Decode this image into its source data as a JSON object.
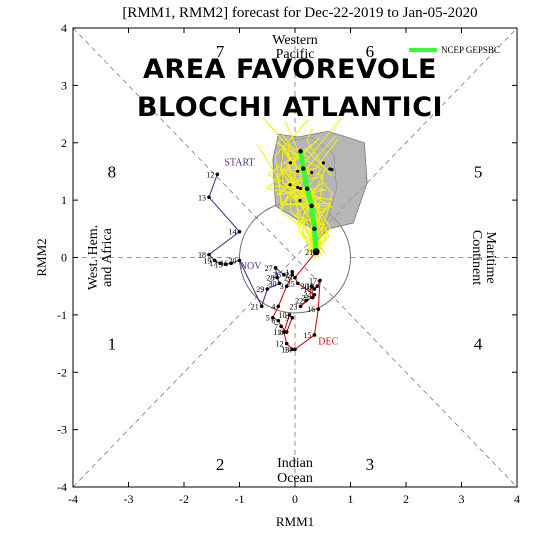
{
  "overlay": {
    "line1": "AREA FAVOREVOLE",
    "line2": "BLOCCHI ATLANTICI"
  },
  "chart_data": {
    "type": "scatter",
    "title": "[RMM1, RMM2] forecast for Dec-22-2019 to Jan-05-2020",
    "xlabel": "RMM1",
    "ylabel": "RMM2",
    "xlim": [
      -4,
      4
    ],
    "ylim": [
      -4,
      4
    ],
    "xticks": [
      "-4",
      "-3",
      "-2",
      "-1",
      "0",
      "1",
      "2",
      "3",
      "4"
    ],
    "yticks": [
      "-4",
      "-3",
      "-2",
      "-1",
      "0",
      "1",
      "2",
      "3",
      "4"
    ],
    "grid": false,
    "legend": {
      "position": "top-right",
      "label": "NCEP GEPSBC",
      "color": "#33ff33"
    },
    "phase_numbers": [
      {
        "label": "1",
        "x": -3.3,
        "y": -1.5
      },
      {
        "label": "2",
        "x": -1.35,
        "y": -3.6
      },
      {
        "label": "3",
        "x": 1.35,
        "y": -3.6
      },
      {
        "label": "4",
        "x": 3.3,
        "y": -1.5
      },
      {
        "label": "5",
        "x": 3.3,
        "y": 1.5
      },
      {
        "label": "6",
        "x": 1.35,
        "y": 3.6
      },
      {
        "label": "7",
        "x": -1.35,
        "y": 3.6
      },
      {
        "label": "8",
        "x": -3.3,
        "y": 1.5
      }
    ],
    "region_labels": {
      "top": [
        "Western",
        "Pacific"
      ],
      "bottom": [
        "Indian",
        "Ocean"
      ],
      "left": [
        "West. Hem.",
        "and Africa"
      ],
      "right": [
        "Maritime",
        "Continent"
      ]
    },
    "month_labels": [
      {
        "label": "START",
        "x": -1.0,
        "y": 1.6,
        "color": "#5b2d8e"
      },
      {
        "label": "NOV",
        "x": -0.8,
        "y": -0.2,
        "color": "#5b2d8e"
      },
      {
        "label": "DEC",
        "x": 0.6,
        "y": -1.52,
        "color": "#cc1111"
      }
    ],
    "series": [
      {
        "name": "NOV",
        "color": "#5b2d8e",
        "points": [
          {
            "x": -1.4,
            "y": 1.45,
            "label": "12"
          },
          {
            "x": -1.55,
            "y": 1.05,
            "label": "13"
          },
          {
            "x": -1.0,
            "y": 0.45,
            "label": "14"
          },
          {
            "x": -1.55,
            "y": 0.05,
            "label": "18"
          },
          {
            "x": -1.45,
            "y": -0.05,
            "label": "19"
          },
          {
            "x": -1.35,
            "y": -0.1,
            "label": "17"
          },
          {
            "x": -1.25,
            "y": -0.12,
            "label": "15"
          },
          {
            "x": -1.15,
            "y": -0.1,
            "label": "16"
          },
          {
            "x": -1.0,
            "y": -0.05,
            "label": "20"
          },
          {
            "x": -0.6,
            "y": -0.85,
            "label": "21"
          },
          {
            "x": -0.5,
            "y": -0.55,
            "label": "29"
          },
          {
            "x": -0.28,
            "y": -0.45,
            "label": "30"
          },
          {
            "x": -0.32,
            "y": -0.35,
            "label": "28"
          },
          {
            "x": -0.35,
            "y": -0.18,
            "label": "27"
          },
          {
            "x": -0.2,
            "y": -0.3,
            "label": "26"
          }
        ]
      },
      {
        "name": "DEC",
        "color": "#cc1111",
        "points": [
          {
            "x": -0.05,
            "y": -0.25,
            "label": "1"
          },
          {
            "x": -0.05,
            "y": -0.3,
            "label": "2"
          },
          {
            "x": -0.15,
            "y": -0.5,
            "label": "3"
          },
          {
            "x": -0.3,
            "y": -0.85,
            "label": "4"
          },
          {
            "x": -0.4,
            "y": -1.05,
            "label": "5"
          },
          {
            "x": -0.3,
            "y": -1.1,
            "label": "6"
          },
          {
            "x": -0.25,
            "y": -1.2,
            "label": "7"
          },
          {
            "x": -0.15,
            "y": -1.3,
            "label": "8"
          },
          {
            "x": -0.05,
            "y": -1.05,
            "label": "9"
          },
          {
            "x": -0.1,
            "y": -1.0,
            "label": "10"
          },
          {
            "x": -0.2,
            "y": -1.3,
            "label": "11"
          },
          {
            "x": -0.15,
            "y": -1.5,
            "label": "12"
          },
          {
            "x": -0.05,
            "y": -1.6,
            "label": "13"
          },
          {
            "x": 0.0,
            "y": -1.6,
            "label": "14"
          },
          {
            "x": 0.35,
            "y": -1.35,
            "label": "15"
          },
          {
            "x": 0.42,
            "y": -0.9,
            "label": "16"
          },
          {
            "x": 0.45,
            "y": -0.4,
            "label": "17"
          },
          {
            "x": 0.4,
            "y": -0.5,
            "label": "18"
          },
          {
            "x": 0.35,
            "y": -0.55,
            "label": "19"
          },
          {
            "x": 0.3,
            "y": -0.5,
            "label": "20"
          },
          {
            "x": 0.32,
            "y": -0.7,
            "label": "21"
          },
          {
            "x": 0.2,
            "y": -0.75,
            "label": "22"
          },
          {
            "x": 0.1,
            "y": -0.85,
            "label": "23"
          },
          {
            "x": 0.35,
            "y": -0.65,
            "label": "24"
          },
          {
            "x": 0.05,
            "y": -0.45,
            "label": "25"
          },
          {
            "x": 0.0,
            "y": -0.35,
            "label": "26"
          },
          {
            "x": 0.38,
            "y": 0.1,
            "label": "21"
          }
        ]
      },
      {
        "name": "NCEP GEPSBC",
        "color": "#33ff33",
        "points": [
          {
            "x": 0.38,
            "y": 0.1
          },
          {
            "x": 0.35,
            "y": 0.5
          },
          {
            "x": 0.3,
            "y": 0.9
          },
          {
            "x": 0.22,
            "y": 1.2
          },
          {
            "x": 0.15,
            "y": 1.55
          },
          {
            "x": 0.1,
            "y": 1.85
          }
        ]
      }
    ]
  }
}
